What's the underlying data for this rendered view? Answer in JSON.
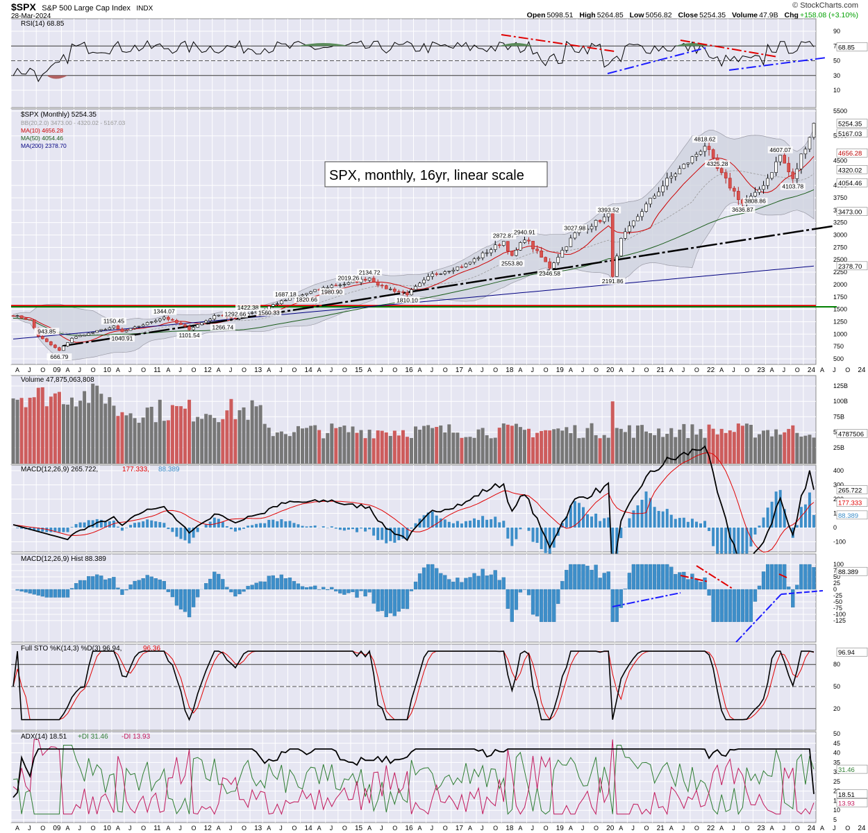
{
  "header": {
    "symbol": "$SPX",
    "name": "S&P 500 Large Cap Index",
    "exchange": "INDX",
    "date": "28-Mar-2024",
    "brand": "© StockCharts.com",
    "open_label": "Open",
    "open": "5098.51",
    "high_label": "High",
    "high": "5264.85",
    "low_label": "Low",
    "low": "5056.82",
    "close_label": "Close",
    "close": "5254.35",
    "volume_label": "Volume",
    "volume": "47.9B",
    "chg_label": "Chg",
    "chg": "+158.08 (+3.10%)",
    "chg_color": "#00a000"
  },
  "annotation": "SPX, monthly, 16yr, linear scale",
  "x_axis": {
    "labels": [
      "A",
      "J",
      "O",
      "09",
      "A",
      "J",
      "O",
      "10",
      "A",
      "J",
      "O",
      "11",
      "A",
      "J",
      "O",
      "12",
      "A",
      "J",
      "O",
      "13",
      "A",
      "J",
      "O",
      "14",
      "A",
      "J",
      "O",
      "15",
      "A",
      "J",
      "O",
      "16",
      "A",
      "J",
      "O",
      "17",
      "A",
      "J",
      "O",
      "18",
      "A",
      "J",
      "O",
      "19",
      "A",
      "J",
      "O",
      "20",
      "A",
      "J",
      "O",
      "21",
      "A",
      "J",
      "O",
      "22",
      "A",
      "J",
      "O",
      "23",
      "A",
      "J",
      "O",
      "24",
      "A",
      "J",
      "O",
      "24",
      "A"
    ],
    "year_labels": [
      "09",
      "10",
      "11",
      "12",
      "13",
      "14",
      "15",
      "16",
      "17",
      "18",
      "19",
      "20",
      "21",
      "22",
      "23",
      "24"
    ]
  },
  "panels": {
    "rsi": {
      "title": "RSI(14) 68.85",
      "ticks": [
        "90",
        "70",
        "50",
        "30",
        "10"
      ],
      "value_box": "68.85"
    },
    "price": {
      "title": "$SPX (Monthly) 5254.35",
      "legend": [
        {
          "text": "BB(20,2.0) 3473.00 - 4320.02 - 5167.03",
          "color": "#999999"
        },
        {
          "text": "MA(10) 4656.28",
          "color": "#cc0000"
        },
        {
          "text": "MA(50) 4054.46",
          "color": "#1a5c1a"
        },
        {
          "text": "MA(200) 2378.70",
          "color": "#000080"
        }
      ],
      "ticks": [
        "5500",
        "5000",
        "4500",
        "4000",
        "3750",
        "3500",
        "3250",
        "3000",
        "2750",
        "2500",
        "2250",
        "2000",
        "1750",
        "1500",
        "1250",
        "1000",
        "750",
        "500"
      ],
      "right_boxes": [
        "5254.35",
        "5167.03",
        "4656.28",
        "4320.02",
        "4054.46",
        "3473.00",
        "2378.70"
      ],
      "price_labels": [
        "666.79",
        "943.85",
        "1040.91",
        "1150.45",
        "1101.54",
        "1344.07",
        "1292.66",
        "1266.74",
        "1422.38",
        "1560.33",
        "1687.18",
        "1820.66",
        "1980.90",
        "2019.26",
        "2134.72",
        "1810.10",
        "2553.80",
        "2872.87",
        "2940.91",
        "2346.58",
        "3027.98",
        "3393.52",
        "2191.86",
        "3636.87",
        "3808.86",
        "4818.62",
        "4325.28",
        "4607.07",
        "4103.78"
      ]
    },
    "volume": {
      "title": "Volume 47,875,063,808",
      "ticks": [
        "125B",
        "100B",
        "75B",
        "50B",
        "25B"
      ],
      "value_box": "4787506"
    },
    "macd": {
      "title": "MACD(12,26,9) 265.722,",
      "signal_text": "177.333,",
      "hist_text": "88.389",
      "ticks": [
        "400",
        "300",
        "200",
        "100",
        "0",
        "-100"
      ],
      "value_boxes": [
        "265.722",
        "177.333",
        "88.389"
      ]
    },
    "macd_hist": {
      "title": "MACD(12,26,9) Hist 88.389",
      "ticks": [
        "100",
        "75",
        "50",
        "25",
        "0",
        "-25",
        "-50",
        "-75",
        "-100",
        "-125"
      ],
      "value_box": "88.389"
    },
    "sto": {
      "title": "Full STO %K(14,3) %D(3) 96.94,",
      "d_text": "96.36",
      "ticks": [
        "80",
        "50",
        "20"
      ],
      "value_box": "96.94"
    },
    "adx": {
      "title": "ADX(14) 18.51",
      "pdi_text": "+DI 31.46",
      "mdi_text": "-DI 13.93",
      "ticks": [
        "50",
        "45",
        "40",
        "35",
        "30",
        "25",
        "20",
        "15",
        "10",
        "5"
      ],
      "value_boxes": [
        "31.46",
        "18.51",
        "13.93"
      ]
    }
  },
  "colors": {
    "panel_bg": "#e6e6f2",
    "grid": "#ffffff",
    "up_candle": "#ffffff",
    "down_candle": "#d9534f",
    "vol_up": "#777777",
    "vol_down": "#cd5c5c",
    "hist": "#3d8ec9",
    "ma10": "#cc0000",
    "ma50": "#1a5c1a",
    "ma200": "#000080",
    "rsi_fill_high": "#5b8c5b",
    "rsi_fill_low": "#b06060"
  },
  "chart_data": {
    "type": "line",
    "title": "$SPX (Monthly)",
    "x_start": "2008-04",
    "x_end": "2024-03",
    "ylim": [
      500,
      5500
    ],
    "key_points": [
      {
        "date": "2009-03",
        "value": 666.79
      },
      {
        "date": "2010-04",
        "value": 1150.45
      },
      {
        "date": "2011-04",
        "value": 1344.07
      },
      {
        "date": "2011-10",
        "value": 1101.54
      },
      {
        "date": "2013-05",
        "value": 1687.18
      },
      {
        "date": "2015-05",
        "value": 2134.72
      },
      {
        "date": "2016-02",
        "value": 1810.1
      },
      {
        "date": "2018-01",
        "value": 2872.87
      },
      {
        "date": "2018-12",
        "value": 2346.58
      },
      {
        "date": "2020-02",
        "value": 3393.52
      },
      {
        "date": "2020-03",
        "value": 2191.86
      },
      {
        "date": "2022-01",
        "value": 4818.62
      },
      {
        "date": "2022-10",
        "value": 3491.58
      },
      {
        "date": "2023-07",
        "value": 4607.07
      },
      {
        "date": "2023-10",
        "value": 4103.78
      },
      {
        "date": "2024-03",
        "value": 5254.35
      }
    ],
    "horizontal_lines": [
      {
        "value": 1575,
        "color": "red"
      },
      {
        "value": 1575,
        "color": "green"
      }
    ],
    "series": [
      {
        "name": "RSI(14)",
        "last": 68.85
      },
      {
        "name": "MA(10)",
        "last": 4656.28
      },
      {
        "name": "MA(50)",
        "last": 4054.46
      },
      {
        "name": "MA(200)",
        "last": 2378.7
      },
      {
        "name": "MACD",
        "last": 265.722
      },
      {
        "name": "Signal",
        "last": 177.333
      },
      {
        "name": "Hist",
        "last": 88.389
      },
      {
        "name": "%K",
        "last": 96.94
      },
      {
        "name": "%D",
        "last": 96.36
      },
      {
        "name": "ADX",
        "last": 18.51
      },
      {
        "name": "+DI",
        "last": 31.46
      },
      {
        "name": "-DI",
        "last": 13.93
      }
    ]
  }
}
